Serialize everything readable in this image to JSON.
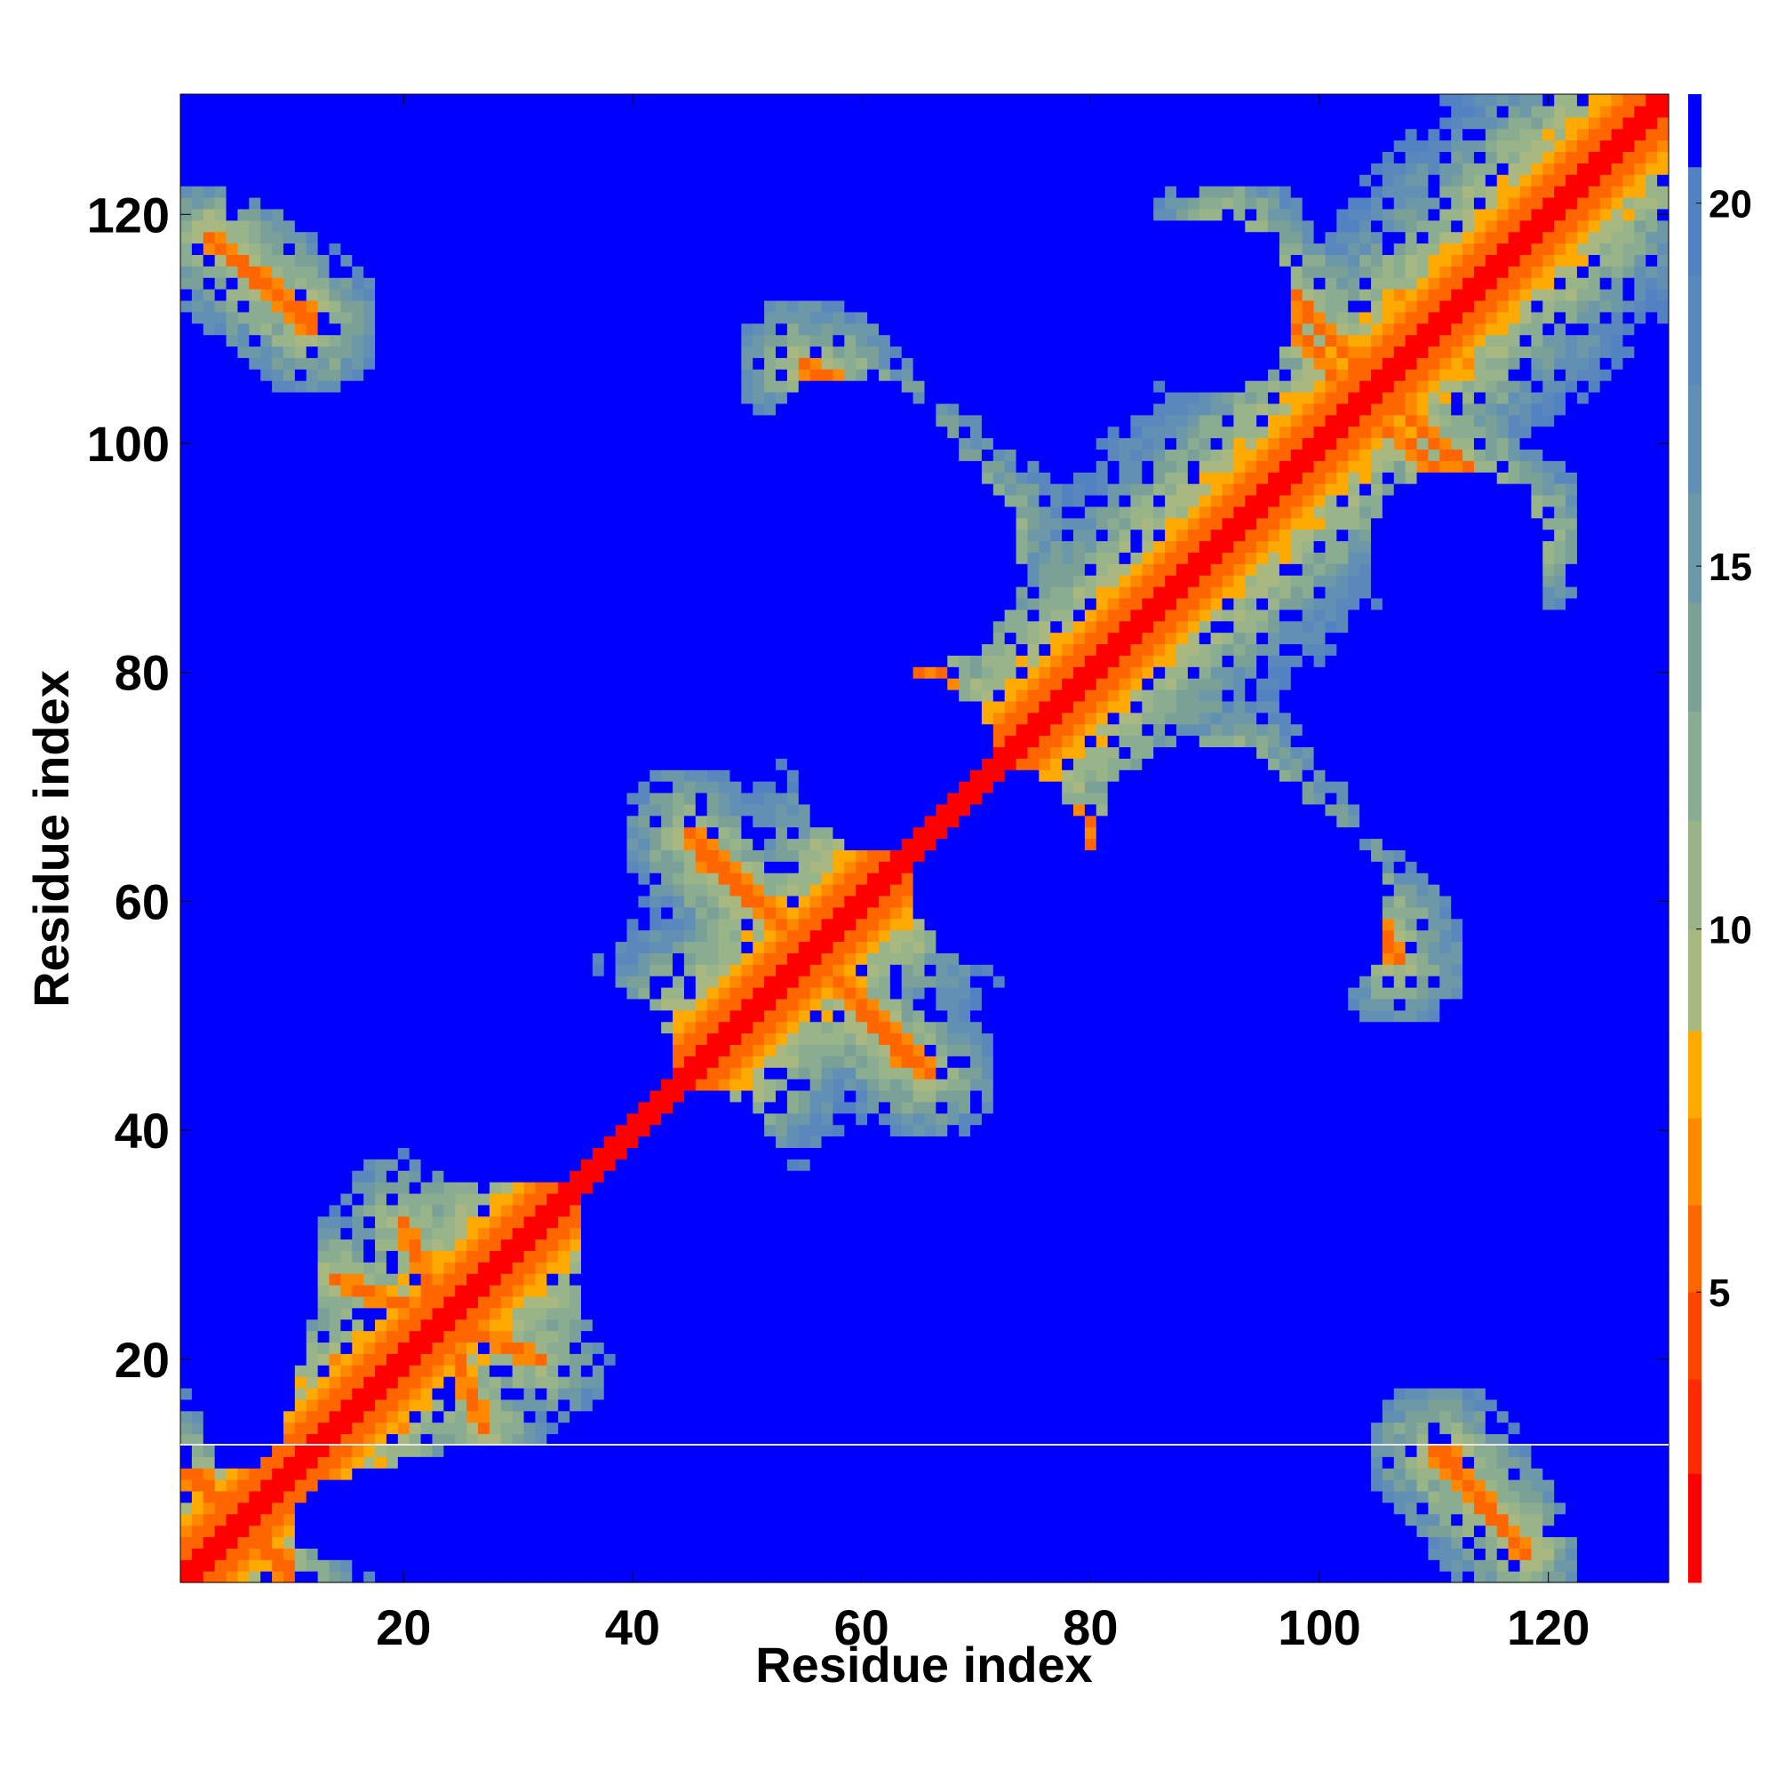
{
  "chart_data": {
    "type": "heatmap",
    "title": "",
    "xlabel": "Residue index",
    "ylabel": "Residue index",
    "n_residues": 130,
    "xlim": [
      1,
      130
    ],
    "ylim": [
      1,
      130
    ],
    "x_ticks": [
      20,
      40,
      60,
      80,
      100,
      120
    ],
    "y_ticks": [
      20,
      40,
      60,
      80,
      100,
      120
    ],
    "colorbar": {
      "range": [
        1,
        21.5
      ],
      "ticks": [
        5,
        10,
        15,
        20
      ],
      "levels": [
        {
          "from": 1.0,
          "to": 2.5,
          "color": "#ff0000"
        },
        {
          "from": 2.5,
          "to": 3.8,
          "color": "#ff2a00"
        },
        {
          "from": 3.8,
          "to": 5.0,
          "color": "#ff4400"
        },
        {
          "from": 5.0,
          "to": 6.2,
          "color": "#ff6600"
        },
        {
          "from": 6.2,
          "to": 7.4,
          "color": "#ff8800"
        },
        {
          "from": 7.4,
          "to": 8.6,
          "color": "#ffaa00"
        },
        {
          "from": 8.6,
          "to": 10.0,
          "color": "#a8b880"
        },
        {
          "from": 10.0,
          "to": 11.5,
          "color": "#98b488"
        },
        {
          "from": 11.5,
          "to": 13.0,
          "color": "#8aac90"
        },
        {
          "from": 13.0,
          "to": 14.5,
          "color": "#7aa098"
        },
        {
          "from": 14.5,
          "to": 16.0,
          "color": "#6c98a8"
        },
        {
          "from": 16.0,
          "to": 17.5,
          "color": "#6290b4"
        },
        {
          "from": 17.5,
          "to": 19.0,
          "color": "#5a88bc"
        },
        {
          "from": 19.0,
          "to": 20.5,
          "color": "#5282c2"
        },
        {
          "from": 20.5,
          "to": 21.5,
          "color": "#0000ff"
        }
      ]
    },
    "features": {
      "diagonal_width": 1.5,
      "strands": [
        {
          "x0": 1,
          "y0": 10,
          "x1": 10,
          "y1": 2
        },
        {
          "x0": 3,
          "y0": 118,
          "x1": 12,
          "y1": 111
        },
        {
          "x0": 55,
          "y0": 107,
          "x1": 72,
          "y1": 93
        },
        {
          "x0": 92,
          "y0": 119,
          "x1": 106,
          "y1": 104
        },
        {
          "x0": 103,
          "y0": 104,
          "x1": 118,
          "y1": 91
        },
        {
          "x0": 46,
          "y0": 64,
          "x1": 56,
          "y1": 55
        },
        {
          "x0": 56,
          "y0": 55,
          "x1": 66,
          "y1": 45
        },
        {
          "x0": 63,
          "y0": 87,
          "x1": 70,
          "y1": 74
        },
        {
          "x0": 75,
          "y0": 69,
          "x1": 84,
          "y1": 62
        },
        {
          "x0": 93,
          "y0": 71,
          "x1": 106,
          "y1": 57
        },
        {
          "x0": 110,
          "y0": 12,
          "x1": 118,
          "y1": 3
        },
        {
          "x0": 14,
          "y0": 27,
          "x1": 32,
          "y1": 20
        }
      ],
      "holes": [
        {
          "cx": 63,
          "cy": 90,
          "rx": 11,
          "ry": 10
        },
        {
          "cx": 63,
          "cy": 72,
          "rx": 9,
          "ry": 8
        },
        {
          "cx": 92,
          "cy": 59,
          "rx": 14,
          "ry": 11
        },
        {
          "cx": 112,
          "cy": 90,
          "rx": 8,
          "ry": 8
        },
        {
          "cx": 112,
          "cy": 70,
          "rx": 9,
          "ry": 7
        },
        {
          "cx": 88,
          "cy": 112,
          "rx": 7,
          "ry": 6
        },
        {
          "cx": 22,
          "cy": 78,
          "rx": 16,
          "ry": 14
        },
        {
          "cx": 6,
          "cy": 40,
          "rx": 7,
          "ry": 30
        },
        {
          "cx": 124,
          "cy": 35,
          "rx": 8,
          "ry": 30
        },
        {
          "cx": 80,
          "cy": 22,
          "rx": 18,
          "ry": 18
        },
        {
          "cx": 45,
          "cy": 30,
          "rx": 10,
          "ry": 14
        }
      ]
    }
  }
}
